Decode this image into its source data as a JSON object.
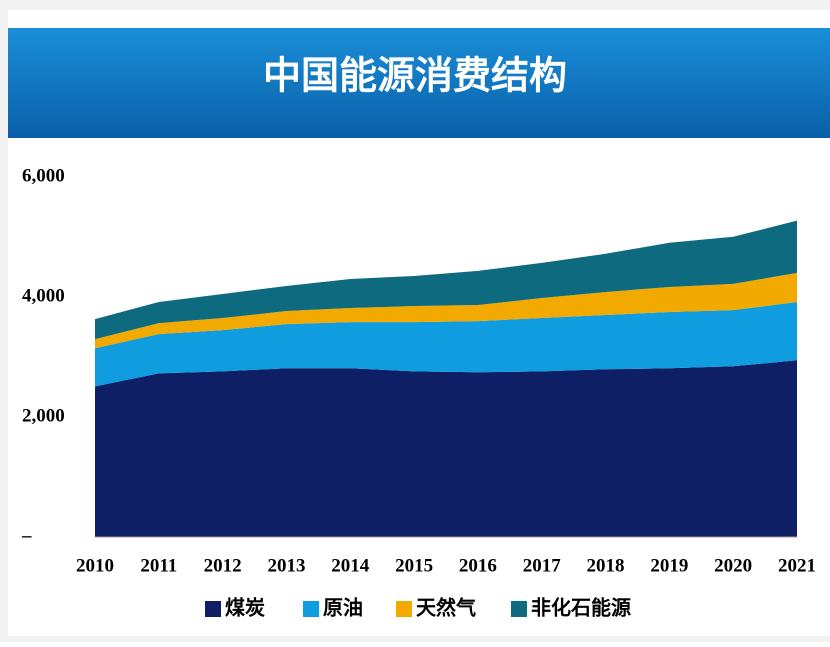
{
  "chart_data": {
    "type": "area",
    "title": "中国能源消费结构",
    "categories": [
      "2010",
      "2011",
      "2012",
      "2013",
      "2014",
      "2015",
      "2016",
      "2017",
      "2018",
      "2019",
      "2020",
      "2021"
    ],
    "series": [
      {
        "name": "煤炭",
        "color": "#0e1f66",
        "values": [
          2510,
          2728,
          2761,
          2812,
          2812,
          2761,
          2745,
          2761,
          2795,
          2812,
          2845,
          2946
        ]
      },
      {
        "name": "原油",
        "color": "#0f9ddf",
        "values": [
          636,
          653,
          687,
          736,
          770,
          821,
          853,
          888,
          904,
          937,
          937,
          970
        ]
      },
      {
        "name": "天然气",
        "color": "#f2a900",
        "values": [
          151,
          184,
          201,
          218,
          234,
          267,
          268,
          334,
          385,
          418,
          436,
          486
        ]
      },
      {
        "name": "非化石能源",
        "color": "#0e6a7e",
        "values": [
          335,
          351,
          401,
          418,
          485,
          502,
          569,
          586,
          636,
          737,
          786,
          870
        ]
      }
    ],
    "stacked": true,
    "ylim": [
      0,
      6000
    ],
    "yticks": [
      {
        "value": 0,
        "label": "–"
      },
      {
        "value": 2000,
        "label": "2,000"
      },
      {
        "value": 4000,
        "label": "4,000"
      },
      {
        "value": 6000,
        "label": "6,000"
      }
    ]
  }
}
